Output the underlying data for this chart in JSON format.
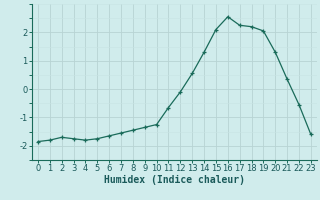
{
  "x": [
    0,
    1,
    2,
    3,
    4,
    5,
    6,
    7,
    8,
    9,
    10,
    11,
    12,
    13,
    14,
    15,
    16,
    17,
    18,
    19,
    20,
    21,
    22,
    23
  ],
  "y": [
    -1.85,
    -1.8,
    -1.7,
    -1.75,
    -1.8,
    -1.75,
    -1.65,
    -1.55,
    -1.45,
    -1.35,
    -1.25,
    -0.65,
    -0.1,
    0.55,
    1.3,
    2.1,
    2.55,
    2.25,
    2.2,
    2.05,
    1.3,
    0.35,
    -0.55,
    -1.6
  ],
  "xlabel": "Humidex (Indice chaleur)",
  "xlim": [
    -0.5,
    23.5
  ],
  "ylim": [
    -2.5,
    3.0
  ],
  "yticks": [
    -2,
    -1,
    0,
    1,
    2
  ],
  "xticks": [
    0,
    1,
    2,
    3,
    4,
    5,
    6,
    7,
    8,
    9,
    10,
    11,
    12,
    13,
    14,
    15,
    16,
    17,
    18,
    19,
    20,
    21,
    22,
    23
  ],
  "line_color": "#1a6b5a",
  "marker": "+",
  "bg_color": "#d0ecec",
  "grid_color_major": "#b8d4d4",
  "grid_color_minor": "#c8e4e4",
  "xlabel_fontsize": 7,
  "tick_fontsize": 6,
  "linewidth": 0.9,
  "markersize": 3.5,
  "markeredgewidth": 0.9
}
